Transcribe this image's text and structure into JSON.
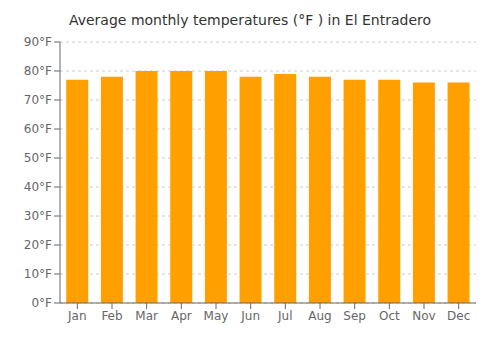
{
  "chart_data": {
    "type": "bar",
    "title": "Average monthly temperatures (°F ) in El Entradero",
    "categories": [
      "Jan",
      "Feb",
      "Mar",
      "Apr",
      "May",
      "Jun",
      "Jul",
      "Aug",
      "Sep",
      "Oct",
      "Nov",
      "Dec"
    ],
    "values": [
      77,
      78,
      80,
      80,
      80,
      78,
      79,
      78,
      77,
      77,
      76,
      76
    ],
    "color": "#FFA000",
    "ylim": [
      0,
      90
    ],
    "yticks": [
      {
        "value": 0,
        "label": "0°F"
      },
      {
        "value": 10,
        "label": "10°F"
      },
      {
        "value": 20,
        "label": "20°F"
      },
      {
        "value": 30,
        "label": "30°F"
      },
      {
        "value": 40,
        "label": "40°F"
      },
      {
        "value": 50,
        "label": "50°F"
      },
      {
        "value": 60,
        "label": "60°F"
      },
      {
        "value": 70,
        "label": "70°F"
      },
      {
        "value": 80,
        "label": "80°F"
      },
      {
        "value": 90,
        "label": "90°F"
      }
    ],
    "grid": true
  }
}
